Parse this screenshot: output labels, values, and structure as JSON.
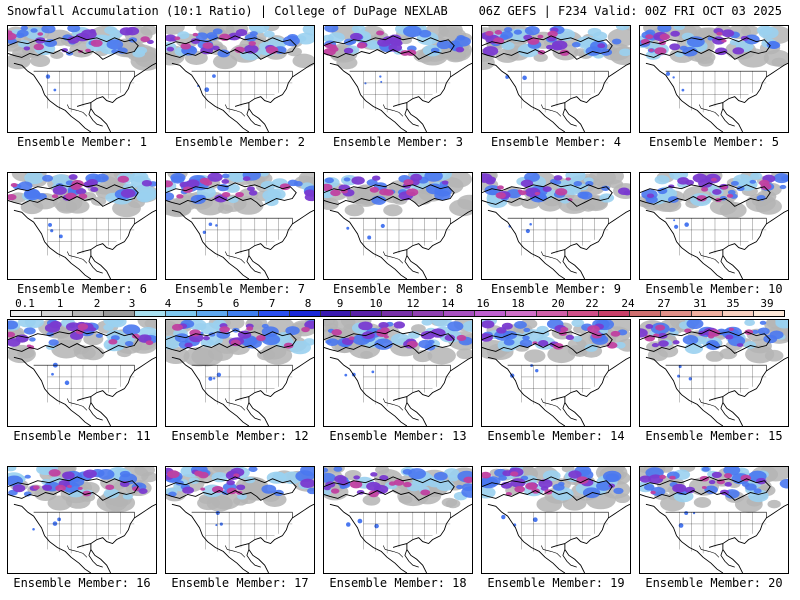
{
  "header": {
    "title": "Snowfall Accumulation (10:1 Ratio) | College of DuPage NEXLAB",
    "run_info": "06Z GEFS | F234 Valid: 00Z FRI OCT 03 2025"
  },
  "members": [
    {
      "label": "Ensemble Member: 1"
    },
    {
      "label": "Ensemble Member: 2"
    },
    {
      "label": "Ensemble Member: 3"
    },
    {
      "label": "Ensemble Member: 4"
    },
    {
      "label": "Ensemble Member: 5"
    },
    {
      "label": "Ensemble Member: 6"
    },
    {
      "label": "Ensemble Member: 7"
    },
    {
      "label": "Ensemble Member: 8"
    },
    {
      "label": "Ensemble Member: 9"
    },
    {
      "label": "Ensemble Member: 10"
    },
    {
      "label": "Ensemble Member: 11"
    },
    {
      "label": "Ensemble Member: 12"
    },
    {
      "label": "Ensemble Member: 13"
    },
    {
      "label": "Ensemble Member: 14"
    },
    {
      "label": "Ensemble Member: 15"
    },
    {
      "label": "Ensemble Member: 16"
    },
    {
      "label": "Ensemble Member: 17"
    },
    {
      "label": "Ensemble Member: 18"
    },
    {
      "label": "Ensemble Member: 19"
    },
    {
      "label": "Ensemble Member: 20"
    }
  ],
  "colorbar": {
    "labels": [
      "0.1",
      "1",
      "2",
      "3",
      "4",
      "5",
      "6",
      "7",
      "8",
      "9",
      "10",
      "12",
      "14",
      "16",
      "18",
      "20",
      "22",
      "24",
      "27",
      "31",
      "35",
      "39"
    ],
    "colors": [
      "#eeeeee",
      "#d4d4d4",
      "#b8b8b8",
      "#9a9a9a",
      "#a8e0f0",
      "#7ec8f0",
      "#5fa8f0",
      "#3f7ff0",
      "#2a4ff0",
      "#1a28d8",
      "#3a1ab0",
      "#5a20a8",
      "#7830a8",
      "#9040b0",
      "#a850c0",
      "#c060d0",
      "#d070c8",
      "#d060a8",
      "#d05088",
      "#c84068",
      "#d07070",
      "#e09088",
      "#f0b0a0",
      "#f8d0c0",
      "#fde8d8"
    ]
  },
  "map_colors": {
    "heavy": "#c040a0",
    "medium": "#7a3ad0",
    "light_blue": "#4a78f0",
    "pale_blue": "#9ad0f0",
    "gray": "#b4b4b4",
    "outline": "#000000"
  }
}
